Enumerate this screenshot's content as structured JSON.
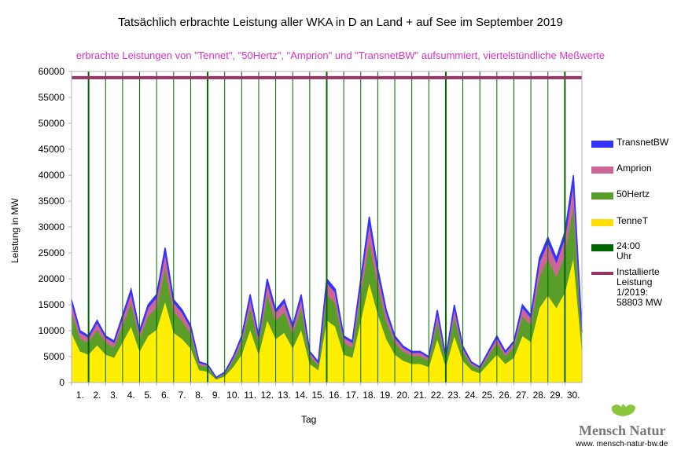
{
  "chart_data": {
    "type": "area",
    "stacked": true,
    "title": "Tatsächlich erbrachte Leistung aller WKA in D an Land + auf See im September 2019",
    "subtitle": "erbrachte Leistungen von \"Tennet\", \"50Hertz\", \"Amprion\" und \"TransnetBW\" aufsummiert, viertelstündliche Meßwerte",
    "xlabel": "Tag",
    "ylabel": "Leistung in MW",
    "ylim": [
      0,
      60000
    ],
    "yticks": [
      0,
      5000,
      10000,
      15000,
      20000,
      25000,
      30000,
      35000,
      40000,
      45000,
      50000,
      55000,
      60000
    ],
    "xticks": [
      "1.",
      "2.",
      "3.",
      "4.",
      "5.",
      "6.",
      "7.",
      "8.",
      "9.",
      "10.",
      "11.",
      "12.",
      "13.",
      "14.",
      "15.",
      "16.",
      "17.",
      "18.",
      "19.",
      "20.",
      "21.",
      "22.",
      "23.",
      "24.",
      "25.",
      "26.",
      "27.",
      "28.",
      "29.",
      "30."
    ],
    "x_days": [
      0,
      0.5,
      1,
      1.5,
      2,
      2.5,
      3,
      3.5,
      4,
      4.5,
      5,
      5.5,
      6,
      6.5,
      7,
      7.5,
      8,
      8.5,
      9,
      9.5,
      10,
      10.5,
      11,
      11.5,
      12,
      12.5,
      13,
      13.5,
      14,
      14.5,
      15,
      15.5,
      16,
      16.5,
      17,
      17.5,
      18,
      18.5,
      19,
      19.5,
      20,
      20.5,
      21,
      21.5,
      22,
      22.5,
      23,
      23.5,
      24,
      24.5,
      25,
      25.5,
      26,
      26.5,
      27,
      27.5,
      28,
      28.5,
      29,
      29.5,
      30
    ],
    "series": [
      {
        "name": "TenneT",
        "color": "#ffee00",
        "values": [
          9600,
          6000,
          5400,
          7200,
          5400,
          4800,
          7800,
          10800,
          6000,
          9000,
          10200,
          15600,
          9600,
          8400,
          6600,
          2400,
          2100,
          600,
          1200,
          3000,
          5400,
          10200,
          5400,
          12000,
          8400,
          9600,
          6600,
          10200,
          3600,
          2400,
          12000,
          10800,
          5400,
          4800,
          12000,
          19200,
          13200,
          8400,
          5400,
          4200,
          3600,
          3600,
          3000,
          8400,
          3000,
          9000,
          4200,
          2400,
          1800,
          3600,
          5400,
          3600,
          4800,
          9000,
          7800,
          14400,
          16800,
          14400,
          17400,
          24000,
          6000
        ]
      },
      {
        "name": "50Hertz",
        "color": "#5a9e2a",
        "values": [
          4000,
          2500,
          2250,
          3000,
          2250,
          2000,
          3250,
          4500,
          2500,
          3750,
          4250,
          6500,
          4000,
          3500,
          2750,
          1000,
          875,
          250,
          500,
          1250,
          2250,
          4250,
          2250,
          5000,
          3500,
          4000,
          2750,
          4250,
          1500,
          1000,
          5000,
          4500,
          2250,
          2000,
          5000,
          8000,
          5500,
          3500,
          2250,
          1750,
          1500,
          1500,
          1250,
          3500,
          1250,
          3750,
          1750,
          1000,
          750,
          1500,
          2250,
          1500,
          2000,
          3750,
          3250,
          6000,
          7000,
          6000,
          7250,
          10000,
          2500
        ]
      },
      {
        "name": "Amprion",
        "color": "#cc6699",
        "values": [
          1920,
          1200,
          1080,
          1440,
          1080,
          960,
          1560,
          2160,
          1200,
          1800,
          2040,
          3120,
          1920,
          1680,
          1320,
          480,
          420,
          120,
          240,
          600,
          1080,
          2040,
          1080,
          2400,
          1680,
          1920,
          1320,
          2040,
          720,
          480,
          2400,
          2160,
          1080,
          960,
          2400,
          3840,
          2640,
          1680,
          1080,
          840,
          720,
          720,
          600,
          1680,
          600,
          1800,
          840,
          480,
          360,
          720,
          1080,
          720,
          960,
          1800,
          1560,
          2880,
          3360,
          2880,
          3480,
          4800,
          1200
        ]
      },
      {
        "name": "TransnetBW",
        "color": "#3333ff",
        "values": [
          480,
          300,
          270,
          360,
          270,
          240,
          390,
          540,
          300,
          450,
          510,
          780,
          480,
          420,
          330,
          120,
          105,
          30,
          60,
          150,
          270,
          510,
          270,
          600,
          420,
          480,
          330,
          510,
          180,
          120,
          600,
          540,
          270,
          240,
          600,
          960,
          660,
          420,
          270,
          210,
          180,
          180,
          150,
          420,
          150,
          450,
          210,
          120,
          90,
          180,
          270,
          180,
          240,
          450,
          390,
          720,
          840,
          720,
          870,
          1200,
          300
        ]
      }
    ],
    "installed_capacity": 58803,
    "installed_color": "#993366",
    "day_line_color": "#006600",
    "legend": [
      {
        "label": "TransnetBW",
        "color": "#3333ff"
      },
      {
        "label": "Amprion",
        "color": "#cc6699"
      },
      {
        "label": "50Hertz",
        "color": "#5a9e2a"
      },
      {
        "label": "TenneT",
        "color": "#ffdd00"
      },
      {
        "label": "24:00 Uhr",
        "color": "#006600"
      },
      {
        "label": "Installierte Leistung 1/2019: 58803 MW",
        "color": "#993366"
      }
    ],
    "legend_placement": "right"
  },
  "logo": {
    "name": "Mensch Natur",
    "url_text": "www. mensch-natur-bw.de"
  }
}
